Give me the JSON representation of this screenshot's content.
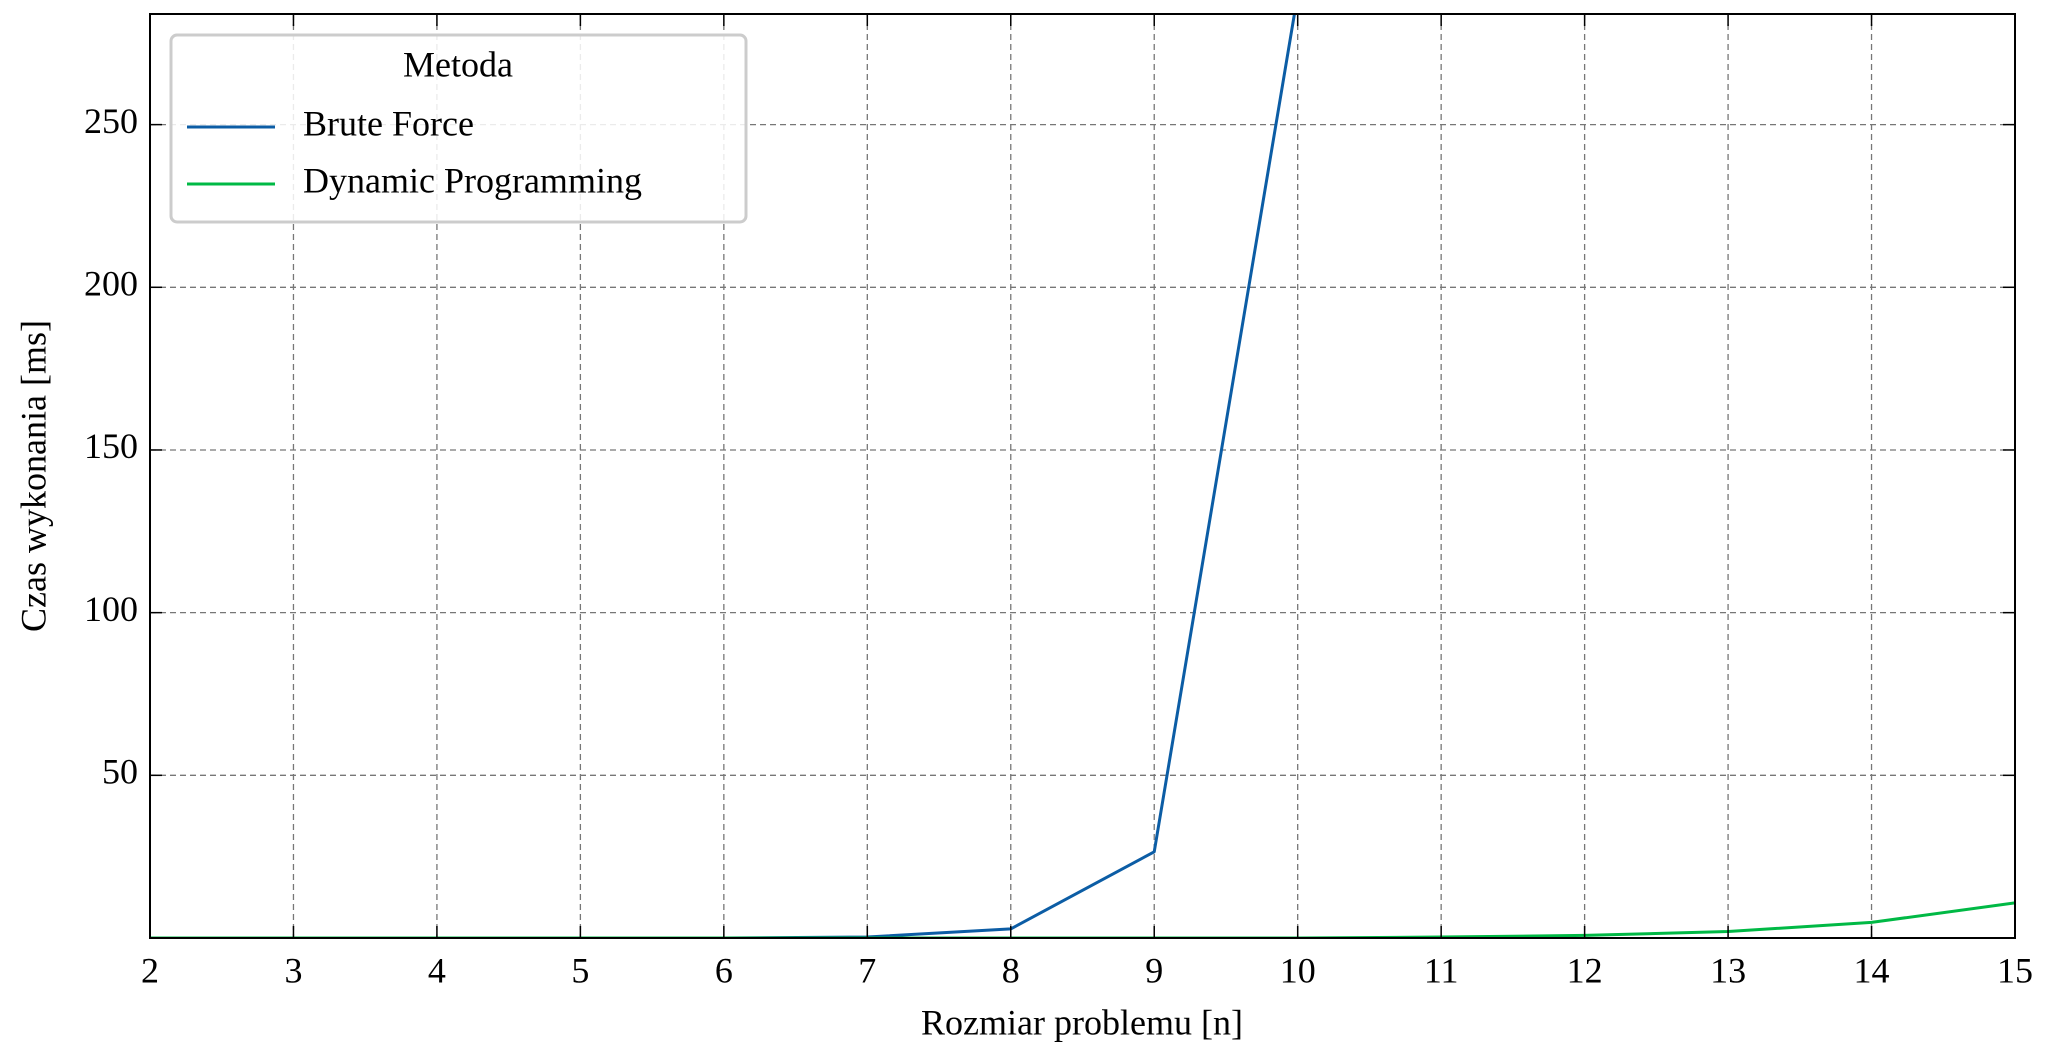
{
  "chart_data": {
    "type": "line",
    "x_label": "Rozmiar problemu [n]",
    "y_label": "Czas wykonania [ms]",
    "legend_title": "Metoda",
    "legend": "upper left",
    "grid": true,
    "x": [
      2,
      3,
      4,
      5,
      6,
      7,
      8,
      9,
      10,
      11,
      12,
      13,
      14,
      15
    ],
    "series": [
      {
        "name": "Brute Force",
        "color": "#0C5DA5",
        "values": [
          0,
          0,
          0,
          0,
          0,
          0.3,
          2.8,
          26.5,
          290,
          null,
          null,
          null,
          null,
          null
        ]
      },
      {
        "name": "Dynamic Programming",
        "color": "#00B945",
        "values": [
          0,
          0,
          0,
          0,
          0,
          0,
          0,
          0,
          0,
          0.3,
          0.8,
          2,
          4.8,
          10.8
        ]
      }
    ],
    "xlim": [
      2,
      15
    ],
    "xticks": [
      2,
      3,
      4,
      5,
      6,
      7,
      8,
      9,
      10,
      11,
      12,
      13,
      14,
      15
    ],
    "ylim": [
      0,
      284
    ],
    "yticks": [
      50,
      100,
      150,
      200,
      250
    ]
  }
}
